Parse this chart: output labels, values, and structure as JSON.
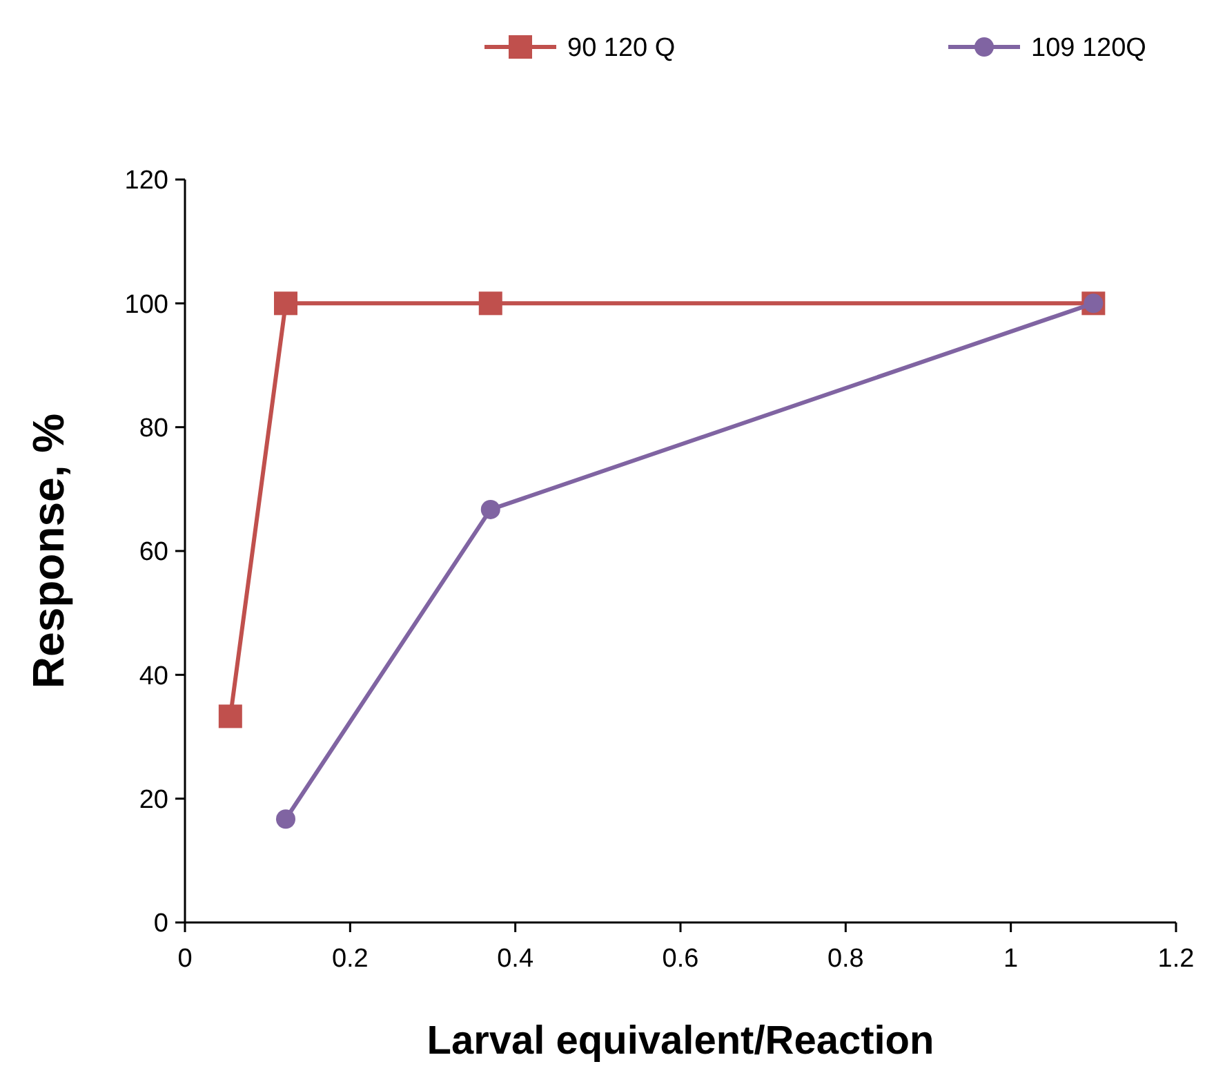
{
  "chart_data": {
    "type": "line",
    "xlabel": "Larval equivalent/Reaction",
    "ylabel": "Response, %",
    "xlim": [
      0,
      1.2
    ],
    "xticks": [
      0,
      0.2,
      0.4,
      0.6,
      0.8,
      1,
      1.2
    ],
    "ylim": [
      0,
      120
    ],
    "yticks": [
      0,
      20,
      40,
      60,
      80,
      100,
      120
    ],
    "legend": "top",
    "grid": false,
    "series": [
      {
        "name": "90 120 Q",
        "color": "#c0504d",
        "marker": "square",
        "x": [
          0.055,
          0.122,
          0.37,
          1.1
        ],
        "values": [
          33.3,
          100,
          100,
          100
        ]
      },
      {
        "name": "109 120Q",
        "color": "#8064a2",
        "marker": "circle",
        "x": [
          0.122,
          0.37,
          1.1
        ],
        "values": [
          16.7,
          66.7,
          100
        ]
      }
    ]
  }
}
